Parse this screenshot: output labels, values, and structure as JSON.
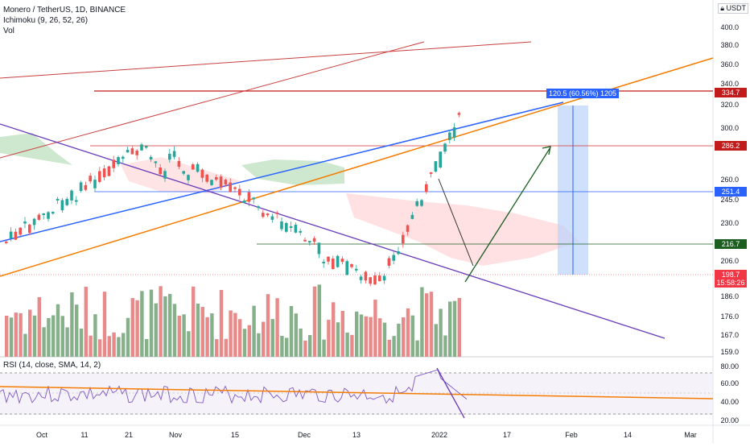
{
  "header": {
    "symbol": "Monero / TetherUS, 1D, BINANCE",
    "indicator1": "Ichimoku (9, 26, 52, 26)",
    "indicator2": "Vol"
  },
  "currency_label": "USDT",
  "currency_icon": "lock-icon",
  "price_axis": [
    "400.0",
    "380.0",
    "360.0",
    "340.0",
    "320.0",
    "300.0",
    "260.0",
    "245.0",
    "230.0",
    "206.0",
    "186.0",
    "176.0",
    "167.0",
    "159.0"
  ],
  "price_tags": [
    {
      "text": "334.7",
      "color": "#c21b1b"
    },
    {
      "text": "286.2",
      "color": "#c21b1b"
    },
    {
      "text": "251.4",
      "color": "#2962ff"
    },
    {
      "text": "216.7",
      "color": "#1b5e20"
    },
    {
      "text": "198.7",
      "color": "#f23645"
    },
    {
      "text": "15:58:26",
      "color": "#f23645"
    }
  ],
  "measure_label": "120.5 (60.56%) 1205",
  "rsi": {
    "label": "RSI (14, close, SMA, 14, 2)",
    "axis": [
      "80.00",
      "60.00",
      "40.00",
      "20.00"
    ]
  },
  "time_axis": [
    "Oct",
    "11",
    "21",
    "Nov",
    "15",
    "Dec",
    "13",
    "2022",
    "17",
    "Feb",
    "14",
    "Mar"
  ],
  "colors": {
    "up": "#26a69a",
    "down": "#ef5350",
    "vol_up": "#86b08a",
    "vol_down": "#e88a8a",
    "cloud_green": "#a5d6a7",
    "cloud_red": "#ffcdd2",
    "orange": "#f57c00",
    "blue": "#2962ff",
    "purple": "#673ab7",
    "darkred": "#c21b1b",
    "green": "#1b5e20"
  }
}
